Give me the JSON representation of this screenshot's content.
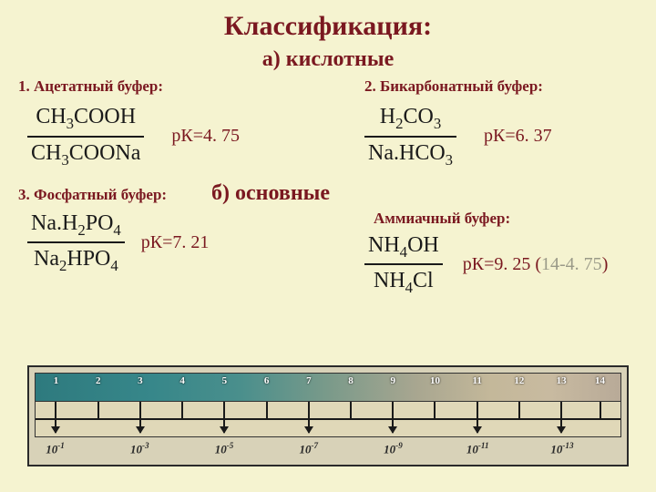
{
  "title": "Классификация:",
  "section_a": "а) кислотные",
  "section_b": "б) основные",
  "buffers": {
    "b1": {
      "label": "1. Ацетатный буфер:",
      "num": "CH<sub>3</sub>COOH",
      "den": "CH<sub>3</sub>COONa",
      "pk": "рК=4. 75"
    },
    "b2": {
      "label": "2. Бикарбонатный буфер:",
      "num": "H<sub>2</sub>CO<sub>3</sub>",
      "den": "Na.HCO<sub>3</sub>",
      "pk": "рК=6. 37"
    },
    "b3": {
      "label": "3. Фосфатный буфер:",
      "num": "Na.H<sub>2</sub>PO<sub>4</sub>",
      "den": "Na<sub>2</sub>HPO<sub>4</sub>",
      "pk": "рК=7. 21"
    },
    "b4": {
      "label": "Аммиачный буфер:",
      "num": "NH<sub>4</sub>OH",
      "den": "NH<sub>4</sub>Cl",
      "pk_pre": "рК=9. 25 (",
      "pk_grey": "14-4. 75",
      "pk_post": ")"
    }
  },
  "scale": {
    "top_numbers": [
      "1",
      "2",
      "3",
      "4",
      "5",
      "6",
      "7",
      "8",
      "9",
      "10",
      "11",
      "12",
      "13",
      "14"
    ],
    "top_positions_pct": [
      3.5,
      10.7,
      17.9,
      25.1,
      32.3,
      39.5,
      46.7,
      53.9,
      61.1,
      68.3,
      75.5,
      82.7,
      89.9,
      96.5
    ],
    "arrow_positions_pct": [
      3.5,
      17.9,
      32.3,
      46.7,
      61.1,
      75.5,
      89.9
    ],
    "short_tick_positions_pct": [
      10.7,
      25.1,
      39.5,
      53.9,
      68.3,
      82.7,
      96.5
    ],
    "bottom_labels": [
      "10<sup>-1</sup>",
      "10<sup>-3</sup>",
      "10<sup>-5</sup>",
      "10<sup>-7</sup>",
      "10<sup>-9</sup>",
      "10<sup>-11</sup>",
      "10<sup>-13</sup>"
    ],
    "bottom_positions_pct": [
      3.5,
      17.9,
      32.3,
      46.7,
      61.1,
      75.5,
      89.9
    ]
  }
}
